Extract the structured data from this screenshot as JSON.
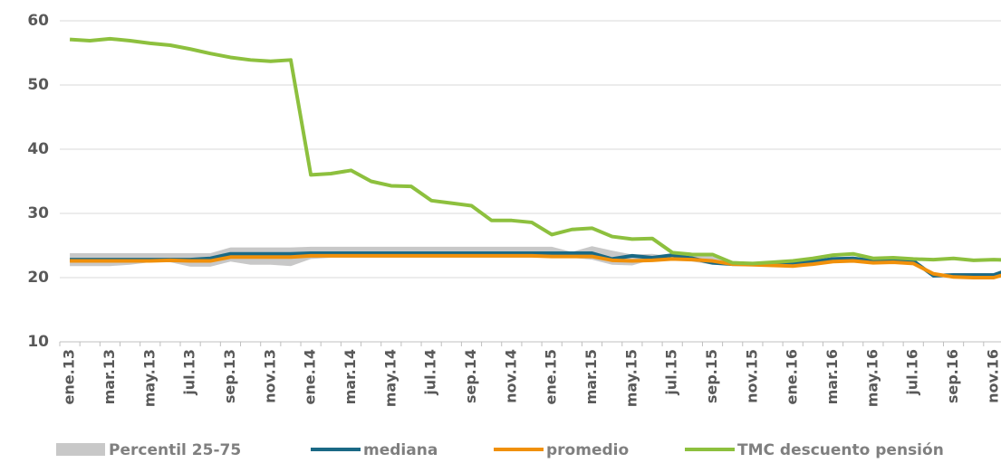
{
  "chart_data": {
    "type": "line",
    "categories": [
      "ene.13",
      null,
      "mar.13",
      null,
      "may.13",
      null,
      "jul.13",
      null,
      "sep.13",
      null,
      "nov.13",
      null,
      "ene.14",
      null,
      "mar.14",
      null,
      "may.14",
      null,
      "jul.14",
      null,
      "sep.14",
      null,
      "nov.14",
      null,
      "ene.15",
      null,
      "mar.15",
      null,
      "may.15",
      null,
      "jul.15",
      null,
      "sep.15",
      null,
      "nov.15",
      null,
      "ene.16",
      null,
      "mar.16",
      null,
      "may.16",
      null,
      "jul.16",
      null,
      "sep.16",
      null,
      "nov.16",
      null
    ],
    "ylim": [
      10,
      60
    ],
    "yticks": [
      10,
      20,
      30,
      40,
      50,
      60
    ],
    "grid": true,
    "series": [
      {
        "name": "Percentil 25-75",
        "color": "#c8c8c8",
        "type": "band",
        "low": [
          21.8,
          21.8,
          21.8,
          22.0,
          22.4,
          22.4,
          21.7,
          21.7,
          22.5,
          22.0,
          22.0,
          21.8,
          22.9,
          23.1,
          23.1,
          23.1,
          23.1,
          23.1,
          23.1,
          23.1,
          23.1,
          23.1,
          23.1,
          23.1,
          23.1,
          23.1,
          22.8,
          22.0,
          21.9,
          22.8,
          23.0,
          22.5,
          22.0,
          21.9,
          21.8,
          21.9,
          21.9,
          22.2,
          22.6,
          22.7,
          22.3,
          22.4,
          22.3,
          20.0,
          20.1,
          20.1,
          20.1,
          21.2
        ],
        "high": [
          23.8,
          23.8,
          23.8,
          23.8,
          23.8,
          23.8,
          23.8,
          23.8,
          24.7,
          24.7,
          24.7,
          24.7,
          24.8,
          24.8,
          24.8,
          24.8,
          24.8,
          24.8,
          24.8,
          24.8,
          24.8,
          24.8,
          24.8,
          24.8,
          24.8,
          24.0,
          24.9,
          24.2,
          23.6,
          23.7,
          23.3,
          23.6,
          23.3,
          22.6,
          22.4,
          22.5,
          22.5,
          22.8,
          23.2,
          23.3,
          22.9,
          23.0,
          22.9,
          20.6,
          20.7,
          20.7,
          20.7,
          21.8
        ]
      },
      {
        "name": "mediana",
        "color": "#1a6985",
        "values": [
          22.8,
          22.8,
          22.8,
          22.8,
          22.8,
          22.8,
          22.8,
          23.0,
          23.7,
          23.7,
          23.7,
          23.7,
          23.8,
          23.8,
          23.8,
          23.8,
          23.8,
          23.8,
          23.8,
          23.8,
          23.8,
          23.8,
          23.8,
          23.8,
          23.8,
          23.8,
          23.8,
          22.9,
          23.4,
          23.1,
          23.5,
          23.0,
          22.3,
          22.1,
          22.1,
          22.2,
          22.2,
          22.5,
          22.9,
          23.0,
          22.6,
          22.7,
          22.6,
          20.3,
          20.4,
          20.4,
          20.4,
          21.5
        ]
      },
      {
        "name": "promedio",
        "color": "#f0900a",
        "values": [
          22.6,
          22.6,
          22.6,
          22.6,
          22.6,
          22.7,
          22.6,
          22.6,
          23.2,
          23.2,
          23.2,
          23.2,
          23.4,
          23.4,
          23.4,
          23.4,
          23.4,
          23.4,
          23.4,
          23.4,
          23.4,
          23.4,
          23.4,
          23.4,
          23.3,
          23.3,
          23.3,
          22.7,
          22.6,
          22.7,
          22.9,
          22.8,
          22.6,
          22.1,
          22.0,
          21.9,
          21.8,
          22.1,
          22.5,
          22.6,
          22.3,
          22.4,
          22.2,
          20.6,
          20.1,
          20.0,
          20.0,
          20.9
        ]
      },
      {
        "name": "TMC descuento pensión",
        "color": "#8dc03e",
        "values": [
          57.1,
          56.9,
          57.2,
          56.9,
          56.5,
          56.2,
          55.6,
          54.9,
          54.3,
          53.9,
          53.7,
          53.9,
          36.0,
          36.2,
          36.7,
          35.0,
          34.3,
          34.2,
          32.0,
          31.6,
          31.2,
          28.9,
          28.9,
          28.6,
          26.7,
          27.5,
          27.7,
          26.4,
          26.0,
          26.1,
          23.9,
          23.6,
          23.6,
          22.3,
          22.2,
          22.4,
          22.6,
          23.0,
          23.5,
          23.7,
          23.0,
          23.1,
          22.9,
          22.8,
          23.0,
          22.7,
          22.8,
          22.7
        ]
      }
    ]
  }
}
